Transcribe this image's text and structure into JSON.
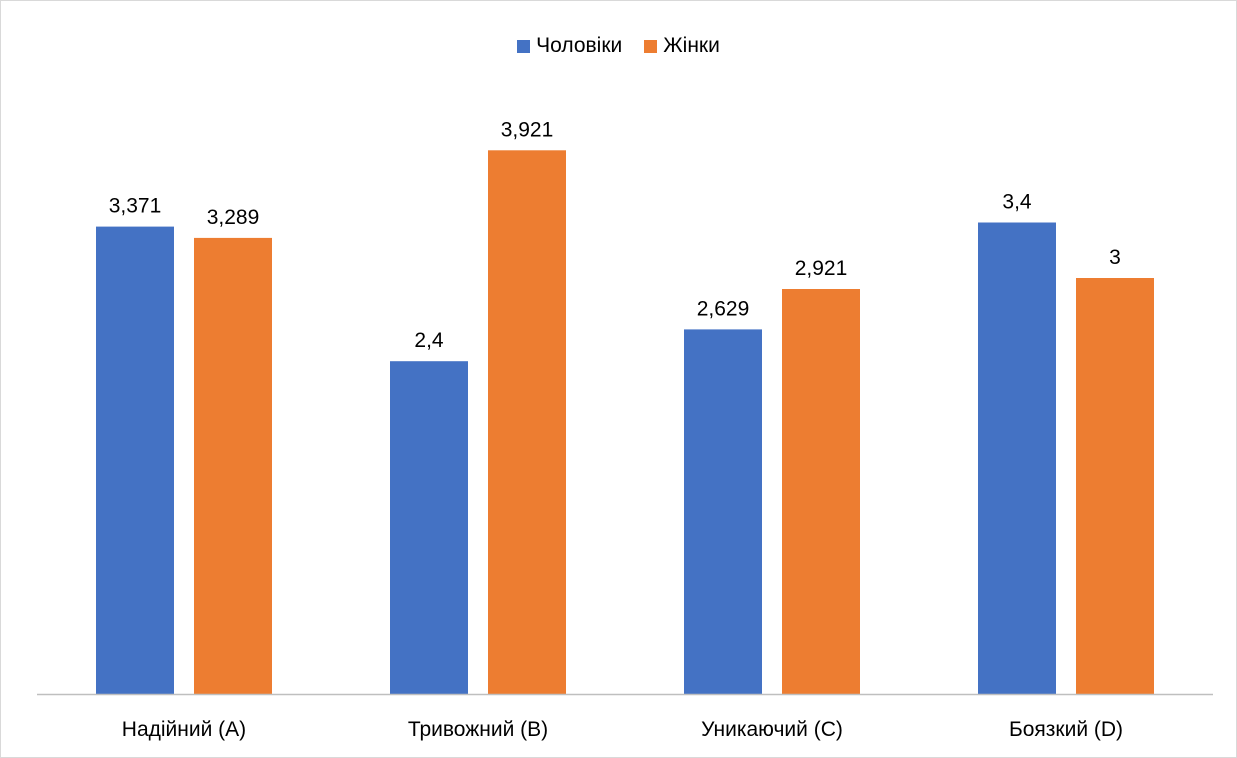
{
  "colors": {
    "men": "#4472c4",
    "women": "#ed7d31",
    "axis": "#bfbfbf",
    "frame": "#d9d9d9"
  },
  "legend": {
    "items": [
      {
        "label": "Чоловіки",
        "color": "#4472c4"
      },
      {
        "label": "Жінки",
        "color": "#ed7d31"
      }
    ]
  },
  "chart_data": {
    "type": "bar",
    "categories": [
      "Надійний (А)",
      "Тривожний (В)",
      "Уникаючий (С)",
      "Боязкий (D)"
    ],
    "series": [
      {
        "name": "Чоловіки",
        "values": [
          3.371,
          2.4,
          2.629,
          3.4
        ],
        "labels": [
          "3,371",
          "2,4",
          "2,629",
          "3,4"
        ]
      },
      {
        "name": "Жінки",
        "values": [
          3.289,
          3.921,
          2.921,
          3.0
        ],
        "labels": [
          "3,289",
          "3,921",
          "2,921",
          "3"
        ]
      }
    ],
    "ylim": [
      0,
      4.5
    ],
    "legend_position": "top-center",
    "grid": false
  }
}
